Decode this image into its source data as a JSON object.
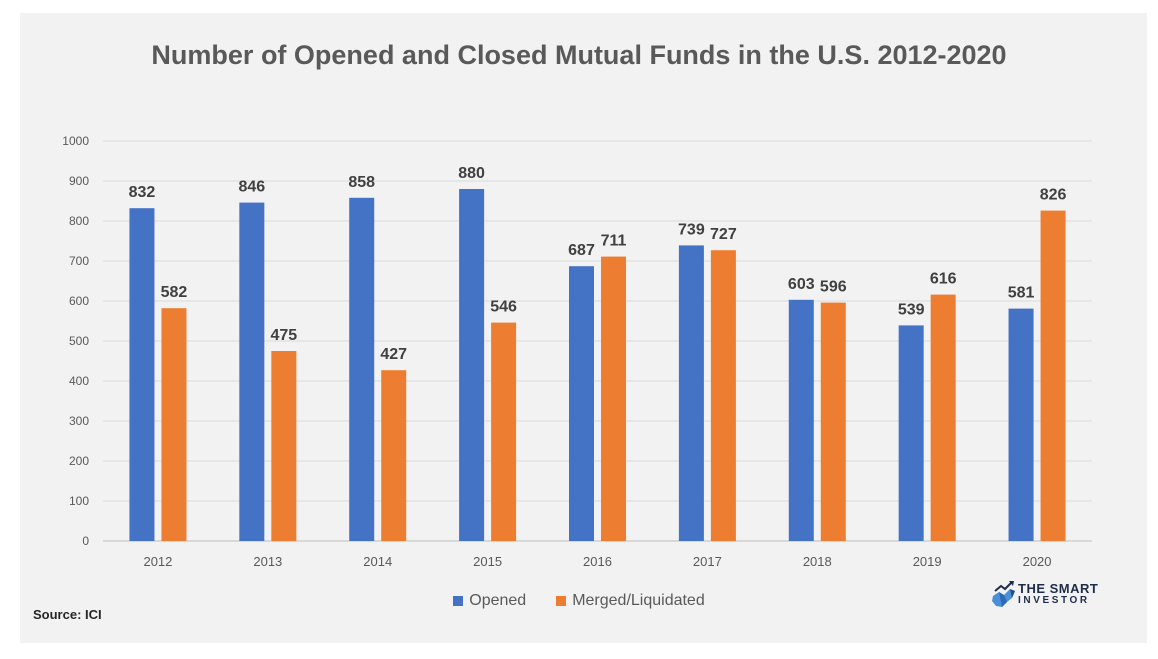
{
  "chart_data": {
    "type": "bar",
    "title": "Number of Opened and Closed Mutual Funds in the U.S. 2012-2020",
    "categories": [
      "2012",
      "2013",
      "2014",
      "2015",
      "2016",
      "2017",
      "2018",
      "2019",
      "2020"
    ],
    "series": [
      {
        "name": "Opened",
        "color": "#4472c4",
        "values": [
          832,
          846,
          858,
          880,
          687,
          739,
          603,
          539,
          581
        ]
      },
      {
        "name": "Merged/Liquidated",
        "color": "#ed7d31",
        "values": [
          582,
          475,
          427,
          546,
          711,
          727,
          596,
          616,
          826
        ]
      }
    ],
    "ylim": [
      0,
      1000
    ],
    "yticks": [
      0,
      100,
      200,
      300,
      400,
      500,
      600,
      700,
      800,
      900,
      1000
    ],
    "grid": true,
    "legend": "bottom",
    "data_labels": true
  },
  "source": "Source:  ICI",
  "logo": {
    "line1": "THE SMART",
    "line2": "INVESTOR"
  }
}
